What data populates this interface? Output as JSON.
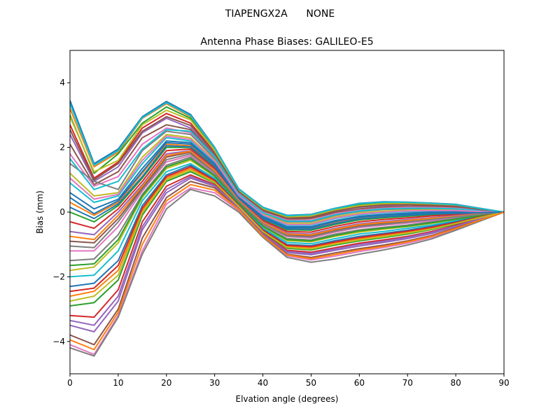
{
  "suptitle": "TIAPENGX2A      NONE",
  "chart_data": {
    "type": "line",
    "title": "Antenna Phase Biases: GALILEO-E5",
    "xlabel": "Elvation angle (degrees)",
    "ylabel": "Bias (mm)",
    "xlim": [
      0,
      90
    ],
    "ylim": [
      -5,
      5
    ],
    "xticks": [
      0,
      10,
      20,
      30,
      40,
      50,
      60,
      70,
      80,
      90
    ],
    "yticks": [
      -4,
      -2,
      0,
      2,
      4
    ],
    "grid": false,
    "x": [
      0,
      5,
      10,
      15,
      20,
      25,
      30,
      35,
      40,
      45,
      50,
      55,
      60,
      65,
      70,
      75,
      80,
      85,
      90
    ],
    "colors": [
      "#1f77b4",
      "#ff7f0e",
      "#2ca02c",
      "#d62728",
      "#9467bd",
      "#8c564b",
      "#e377c2",
      "#7f7f7f",
      "#bcbd22",
      "#17becf"
    ],
    "series": [
      {
        "values": [
          3.45,
          1.5,
          1.95,
          2.95,
          3.42,
          3.02,
          2.0,
          0.72,
          0.15,
          -0.1,
          -0.07,
          0.12,
          0.27,
          0.32,
          0.31,
          0.28,
          0.24,
          0.12,
          0.0
        ]
      },
      {
        "values": [
          3.2,
          1.4,
          1.85,
          2.9,
          3.35,
          2.95,
          1.95,
          0.7,
          0.12,
          -0.12,
          -0.08,
          0.1,
          0.25,
          0.3,
          0.3,
          0.27,
          0.23,
          0.11,
          0.0
        ]
      },
      {
        "values": [
          3.0,
          1.2,
          1.8,
          2.75,
          3.25,
          2.9,
          1.9,
          0.68,
          0.1,
          -0.15,
          -0.1,
          0.08,
          0.22,
          0.28,
          0.28,
          0.25,
          0.21,
          0.1,
          0.0
        ]
      },
      {
        "values": [
          2.7,
          1.05,
          1.55,
          2.6,
          3.05,
          2.75,
          1.85,
          0.65,
          0.08,
          -0.18,
          -0.15,
          0.05,
          0.18,
          0.24,
          0.25,
          0.22,
          0.19,
          0.09,
          0.0
        ]
      },
      {
        "values": [
          2.4,
          0.95,
          1.4,
          2.45,
          2.9,
          2.6,
          1.8,
          0.62,
          0.05,
          -0.2,
          -0.18,
          0.02,
          0.15,
          0.2,
          0.22,
          0.2,
          0.17,
          0.08,
          0.0
        ]
      },
      {
        "values": [
          2.1,
          0.85,
          1.25,
          2.3,
          2.7,
          2.55,
          1.75,
          0.6,
          0.02,
          -0.22,
          -0.2,
          -0.02,
          0.1,
          0.16,
          0.18,
          0.17,
          0.15,
          0.07,
          0.0
        ]
      },
      {
        "values": [
          1.8,
          0.8,
          1.1,
          2.1,
          2.6,
          2.45,
          1.7,
          0.58,
          0.0,
          -0.25,
          -0.25,
          -0.05,
          0.06,
          0.12,
          0.15,
          0.14,
          0.12,
          0.06,
          0.0
        ]
      },
      {
        "values": [
          1.5,
          0.95,
          0.7,
          1.9,
          2.5,
          2.4,
          1.65,
          0.55,
          -0.03,
          -0.3,
          -0.3,
          -0.1,
          0.02,
          0.08,
          0.1,
          0.1,
          0.09,
          0.04,
          0.0
        ]
      },
      {
        "values": [
          1.2,
          0.5,
          0.6,
          1.7,
          2.4,
          2.3,
          1.6,
          0.52,
          -0.06,
          -0.35,
          -0.35,
          -0.15,
          -0.03,
          0.03,
          0.06,
          0.07,
          0.06,
          0.03,
          0.0
        ]
      },
      {
        "values": [
          0.9,
          0.3,
          0.5,
          1.5,
          2.3,
          2.2,
          1.55,
          0.5,
          -0.1,
          -0.4,
          -0.4,
          -0.2,
          -0.08,
          -0.02,
          0.02,
          0.03,
          0.03,
          0.02,
          0.0
        ]
      },
      {
        "values": [
          0.6,
          0.1,
          0.4,
          1.35,
          2.2,
          2.15,
          1.5,
          0.48,
          -0.14,
          -0.45,
          -0.45,
          -0.26,
          -0.13,
          -0.07,
          -0.03,
          0.0,
          0.01,
          0.0,
          0.0
        ]
      },
      {
        "values": [
          0.3,
          -0.1,
          0.3,
          1.2,
          2.1,
          2.05,
          1.45,
          0.45,
          -0.18,
          -0.5,
          -0.5,
          -0.32,
          -0.18,
          -0.12,
          -0.08,
          -0.04,
          -0.02,
          -0.01,
          0.0
        ]
      },
      {
        "values": [
          0.0,
          -0.3,
          0.2,
          1.05,
          2.0,
          2.0,
          1.4,
          0.42,
          -0.22,
          -0.55,
          -0.56,
          -0.38,
          -0.24,
          -0.18,
          -0.13,
          -0.08,
          -0.05,
          -0.02,
          0.0
        ]
      },
      {
        "values": [
          -0.3,
          -0.5,
          0.1,
          0.95,
          1.9,
          1.95,
          1.35,
          0.4,
          -0.26,
          -0.6,
          -0.62,
          -0.44,
          -0.3,
          -0.23,
          -0.18,
          -0.12,
          -0.08,
          -0.04,
          0.0
        ]
      },
      {
        "values": [
          -0.6,
          -0.7,
          0.0,
          0.85,
          1.8,
          1.9,
          1.3,
          0.37,
          -0.3,
          -0.65,
          -0.68,
          -0.5,
          -0.36,
          -0.29,
          -0.23,
          -0.17,
          -0.11,
          -0.05,
          0.0
        ]
      },
      {
        "values": [
          -0.9,
          -0.95,
          -0.2,
          0.75,
          1.7,
          1.85,
          1.25,
          0.35,
          -0.34,
          -0.7,
          -0.74,
          -0.56,
          -0.42,
          -0.35,
          -0.28,
          -0.21,
          -0.14,
          -0.07,
          0.0
        ]
      },
      {
        "values": [
          -1.2,
          -1.2,
          -0.45,
          0.65,
          1.55,
          1.75,
          1.2,
          0.32,
          -0.38,
          -0.76,
          -0.8,
          -0.62,
          -0.48,
          -0.41,
          -0.34,
          -0.26,
          -0.17,
          -0.08,
          0.0
        ]
      },
      {
        "values": [
          -1.5,
          -1.45,
          -0.7,
          0.55,
          1.45,
          1.7,
          1.15,
          0.3,
          -0.42,
          -0.82,
          -0.86,
          -0.68,
          -0.55,
          -0.47,
          -0.4,
          -0.3,
          -0.2,
          -0.1,
          0.0
        ]
      },
      {
        "values": [
          -1.8,
          -1.7,
          -0.95,
          0.45,
          1.35,
          1.6,
          1.1,
          0.27,
          -0.46,
          -0.88,
          -0.92,
          -0.75,
          -0.62,
          -0.53,
          -0.45,
          -0.35,
          -0.23,
          -0.11,
          0.0
        ]
      },
      {
        "values": [
          -2.0,
          -1.95,
          -1.2,
          0.35,
          1.25,
          1.5,
          1.05,
          0.25,
          -0.5,
          -0.94,
          -0.98,
          -0.82,
          -0.68,
          -0.6,
          -0.5,
          -0.4,
          -0.27,
          -0.13,
          0.0
        ]
      },
      {
        "values": [
          -2.3,
          -2.2,
          -1.5,
          0.2,
          1.15,
          1.45,
          1.0,
          0.22,
          -0.54,
          -1.0,
          -1.04,
          -0.88,
          -0.75,
          -0.66,
          -0.56,
          -0.44,
          -0.3,
          -0.14,
          0.0
        ]
      },
      {
        "values": [
          -2.6,
          -2.45,
          -1.8,
          0.05,
          1.05,
          1.35,
          0.95,
          0.2,
          -0.58,
          -1.06,
          -1.1,
          -0.95,
          -0.82,
          -0.72,
          -0.62,
          -0.49,
          -0.33,
          -0.16,
          0.0
        ]
      },
      {
        "values": [
          -2.9,
          -2.8,
          -2.1,
          -0.1,
          0.95,
          1.25,
          0.9,
          0.17,
          -0.62,
          -1.12,
          -1.17,
          -1.02,
          -0.89,
          -0.79,
          -0.68,
          -0.54,
          -0.37,
          -0.18,
          0.0
        ]
      },
      {
        "values": [
          -3.2,
          -3.25,
          -2.4,
          -0.3,
          0.8,
          1.15,
          0.85,
          0.15,
          -0.66,
          -1.18,
          -1.24,
          -1.1,
          -0.96,
          -0.86,
          -0.75,
          -0.6,
          -0.41,
          -0.2,
          0.0
        ]
      },
      {
        "values": [
          -3.5,
          -3.7,
          -2.75,
          -0.55,
          0.6,
          1.05,
          0.8,
          0.12,
          -0.7,
          -1.25,
          -1.32,
          -1.18,
          -1.05,
          -0.94,
          -0.82,
          -0.66,
          -0.45,
          -0.22,
          0.0
        ]
      },
      {
        "values": [
          -3.8,
          -4.1,
          -3.0,
          -0.8,
          0.45,
          0.95,
          0.75,
          0.1,
          -0.73,
          -1.3,
          -1.4,
          -1.26,
          -1.13,
          -1.02,
          -0.89,
          -0.72,
          -0.49,
          -0.24,
          0.0
        ]
      },
      {
        "values": [
          -4.1,
          -4.4,
          -3.2,
          -1.2,
          0.25,
          0.75,
          0.6,
          0.05,
          -0.75,
          -1.35,
          -1.48,
          -1.36,
          -1.22,
          -1.1,
          -0.96,
          -0.78,
          -0.53,
          -0.26,
          0.0
        ]
      },
      {
        "values": [
          -4.2,
          -4.45,
          -3.25,
          -1.3,
          0.1,
          0.7,
          0.5,
          0.0,
          -0.78,
          -1.4,
          -1.55,
          -1.45,
          -1.3,
          -1.17,
          -1.02,
          -0.83,
          -0.56,
          -0.28,
          0.0
        ]
      },
      {
        "values": [
          2.95,
          1.25,
          1.6,
          2.7,
          3.15,
          2.85,
          1.9,
          0.66,
          0.09,
          -0.16,
          -0.12,
          0.07,
          0.2,
          0.26,
          0.27,
          0.24,
          0.2,
          0.1,
          0.0
        ]
      },
      {
        "values": [
          1.65,
          0.7,
          0.95,
          1.95,
          2.55,
          2.5,
          1.72,
          0.56,
          -0.02,
          -0.28,
          -0.28,
          -0.08,
          0.04,
          0.1,
          0.12,
          0.12,
          0.1,
          0.05,
          0.0
        ]
      },
      {
        "values": [
          0.45,
          -0.05,
          0.35,
          1.25,
          2.15,
          2.1,
          1.48,
          0.46,
          -0.16,
          -0.48,
          -0.48,
          -0.29,
          -0.16,
          -0.1,
          -0.06,
          -0.02,
          -0.01,
          0.0,
          0.0
        ]
      },
      {
        "values": [
          -0.75,
          -0.85,
          -0.1,
          0.8,
          1.75,
          1.88,
          1.28,
          0.36,
          -0.32,
          -0.68,
          -0.71,
          -0.53,
          -0.39,
          -0.32,
          -0.26,
          -0.19,
          -0.13,
          -0.06,
          0.0
        ]
      },
      {
        "values": [
          -1.65,
          -1.6,
          -0.85,
          0.5,
          1.4,
          1.65,
          1.12,
          0.28,
          -0.44,
          -0.85,
          -0.89,
          -0.72,
          -0.58,
          -0.5,
          -0.43,
          -0.33,
          -0.22,
          -0.11,
          0.0
        ]
      },
      {
        "values": [
          -2.45,
          -2.35,
          -1.65,
          0.12,
          1.1,
          1.4,
          0.98,
          0.21,
          -0.56,
          -1.03,
          -1.07,
          -0.92,
          -0.79,
          -0.69,
          -0.59,
          -0.47,
          -0.32,
          -0.15,
          0.0
        ]
      },
      {
        "values": [
          -3.35,
          -3.5,
          -2.6,
          -0.45,
          0.7,
          1.1,
          0.82,
          0.13,
          -0.68,
          -1.22,
          -1.28,
          -1.14,
          -1.0,
          -0.9,
          -0.78,
          -0.63,
          -0.43,
          -0.21,
          0.0
        ]
      },
      {
        "values": [
          2.55,
          1.0,
          1.5,
          2.5,
          2.95,
          2.68,
          1.82,
          0.63,
          0.06,
          -0.19,
          -0.16,
          0.03,
          0.16,
          0.22,
          0.23,
          0.21,
          0.18,
          0.08,
          0.0
        ]
      },
      {
        "values": [
          1.05,
          0.4,
          0.55,
          1.6,
          2.35,
          2.25,
          1.58,
          0.51,
          -0.08,
          -0.38,
          -0.38,
          -0.18,
          -0.06,
          0.0,
          0.04,
          0.05,
          0.05,
          0.02,
          0.0
        ]
      },
      {
        "values": [
          -1.05,
          -1.1,
          -0.3,
          0.7,
          1.62,
          1.8,
          1.22,
          0.33,
          -0.36,
          -0.74,
          -0.77,
          -0.59,
          -0.45,
          -0.38,
          -0.31,
          -0.23,
          -0.15,
          -0.07,
          0.0
        ]
      },
      {
        "values": [
          -2.75,
          -2.6,
          -1.95,
          -0.02,
          1.0,
          1.3,
          0.92,
          0.18,
          -0.6,
          -1.09,
          -1.14,
          -0.99,
          -0.86,
          -0.76,
          -0.65,
          -0.52,
          -0.35,
          -0.17,
          0.0
        ]
      },
      {
        "values": [
          3.35,
          1.45,
          1.9,
          2.92,
          3.38,
          2.98,
          1.98,
          0.71,
          0.14,
          -0.11,
          -0.08,
          0.11,
          0.26,
          0.31,
          0.3,
          0.27,
          0.23,
          0.11,
          0.0
        ]
      },
      {
        "values": [
          0.15,
          -0.2,
          0.25,
          1.1,
          2.05,
          2.02,
          1.42,
          0.43,
          -0.2,
          -0.52,
          -0.53,
          -0.35,
          -0.21,
          -0.15,
          -0.1,
          -0.06,
          -0.04,
          -0.02,
          0.0
        ]
      },
      {
        "values": [
          -3.95,
          -4.25,
          -3.1,
          -1.0,
          0.35,
          0.85,
          0.68,
          0.08,
          -0.74,
          -1.32,
          -1.44,
          -1.31,
          -1.17,
          -1.06,
          -0.92,
          -0.75,
          -0.51,
          -0.25,
          0.0
        ]
      }
    ]
  }
}
